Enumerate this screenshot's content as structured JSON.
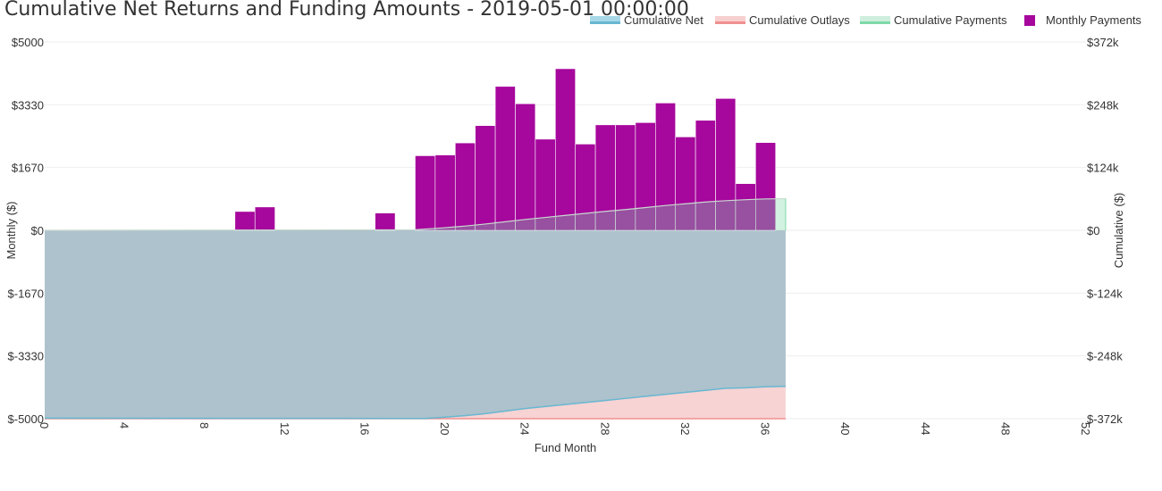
{
  "title": "Cumulative Net Returns and Funding Amounts - 2019-05-01 00:00:00",
  "legend": [
    {
      "label": "Cumulative Net",
      "kind": "area",
      "color": "#68b7d2"
    },
    {
      "label": "Cumulative Outlays",
      "kind": "area",
      "color": "#f08f8f"
    },
    {
      "label": "Cumulative Payments",
      "kind": "area",
      "color": "#7ed9a8"
    },
    {
      "label": "Monthly Payments",
      "kind": "bar",
      "color": "#a6079c"
    }
  ],
  "chart_data": {
    "type": "bar",
    "title": "Cumulative Net Returns and Funding Amounts - 2019-05-01 00:00:00",
    "xlabel": "Fund Month",
    "ylabel": "Monthly ($)",
    "y2label": "Cumulative ($)",
    "xlim": [
      0,
      52
    ],
    "ylim": [
      -5000,
      5000
    ],
    "y2lim": [
      -372000,
      372000
    ],
    "x_ticks": [
      "0",
      "4",
      "8",
      "12",
      "16",
      "20",
      "24",
      "28",
      "32",
      "36",
      "40",
      "44",
      "48",
      "52"
    ],
    "y_ticks": [
      "$5000",
      "$3330",
      "$1670",
      "$0",
      "$-1670",
      "$-3330",
      "$-5000"
    ],
    "y2_ticks": [
      "$372k",
      "$248k",
      "$124k",
      "$0",
      "$-124k",
      "$-248k",
      "$-372k"
    ],
    "grid": true,
    "legend_position": "top-right",
    "monthly_payments": {
      "name": "Monthly Payments",
      "axis": "left",
      "color": "#a6079c",
      "x": [
        10,
        11,
        17,
        19,
        20,
        21,
        22,
        23,
        24,
        25,
        26,
        27,
        28,
        29,
        30,
        31,
        32,
        33,
        34,
        35,
        36
      ],
      "values": [
        500,
        620,
        460,
        1980,
        2000,
        2320,
        2780,
        3820,
        3360,
        2420,
        4290,
        2290,
        2800,
        2800,
        2860,
        3380,
        2480,
        2920,
        3500,
        1240,
        2330
      ]
    },
    "cumulative_series": [
      {
        "name": "Cumulative Payments",
        "axis": "right",
        "color": "#7ed9a8",
        "x": [
          0,
          18.5,
          19,
          20,
          21,
          22,
          23,
          24,
          25,
          26,
          27,
          28,
          29,
          30,
          31,
          32,
          33,
          34,
          35,
          36,
          37
        ],
        "values": [
          0,
          1200,
          2500,
          5200,
          8500,
          12500,
          17000,
          21500,
          25500,
          29500,
          33500,
          37500,
          41000,
          45000,
          49000,
          52500,
          56000,
          58500,
          60500,
          62000,
          62500
        ]
      },
      {
        "name": "Cumulative Outlays",
        "axis": "right",
        "color": "#f08f8f",
        "x": [
          0,
          37
        ],
        "values": [
          -372000,
          -372000
        ]
      },
      {
        "name": "Cumulative Net",
        "axis": "right",
        "color": "#68b7d2",
        "x": [
          0,
          18,
          19,
          20,
          21,
          22,
          23,
          24,
          25,
          26,
          27,
          28,
          29,
          30,
          31,
          32,
          33,
          34,
          35,
          36,
          37
        ],
        "values": [
          -371000,
          -371500,
          -371500,
          -369000,
          -366000,
          -362000,
          -357000,
          -352000,
          -348000,
          -344000,
          -340000,
          -336000,
          -332000,
          -328000,
          -324000,
          -320000,
          -316000,
          -312000,
          -311000,
          -309000,
          -308000
        ]
      }
    ]
  }
}
